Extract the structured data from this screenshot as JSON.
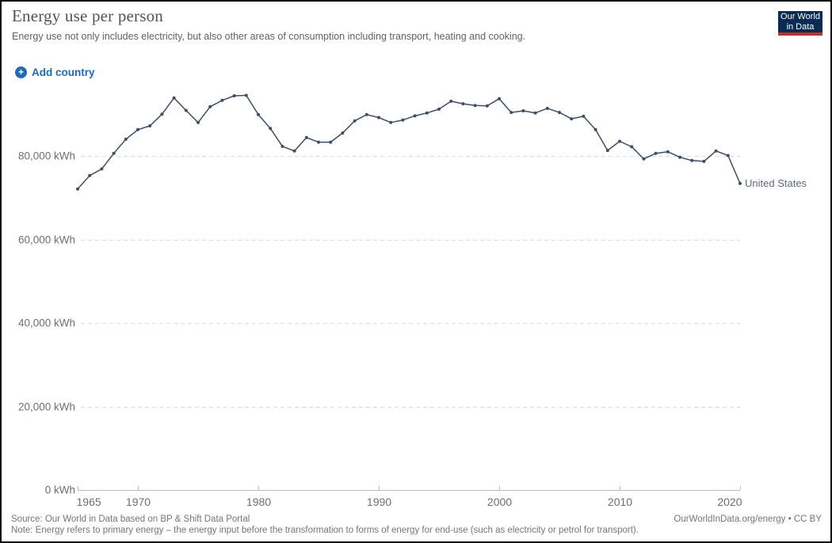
{
  "header": {
    "title": "Energy use per person",
    "subtitle": "Energy use not only includes electricity, but also other areas of consumption including transport, heating and cooking."
  },
  "controls": {
    "add_country_label": "Add country",
    "add_icon": "plus-circle-icon"
  },
  "logo": {
    "line1": "Our World",
    "line2": "in Data",
    "bg_color": "#0b2b52",
    "accent_color": "#b5362a"
  },
  "colors": {
    "accent_blue": "#1d6cb5",
    "grid": "#dcdcdc",
    "axis": "#bcbcbc"
  },
  "footer": {
    "source": "Source: Our World in Data based on BP & Shift Data Portal",
    "note": "Note: Energy refers to primary energy – the energy input before the transformation to forms of energy for end-use (such as electricity or petrol for transport).",
    "link": "OurWorldInData.org/energy • CC BY"
  },
  "chart_data": {
    "type": "line",
    "title": "Energy use per person",
    "unit": "kWh",
    "xlabel": "",
    "ylabel": "",
    "xlim": [
      1965,
      2020
    ],
    "ylim": [
      0,
      96000
    ],
    "grid": "dashed-horizontal",
    "legend_position": "end-of-line",
    "yticks": [
      0,
      20000,
      40000,
      60000,
      80000
    ],
    "ytick_labels": [
      "0 kWh",
      "20,000 kWh",
      "40,000 kWh",
      "60,000 kWh",
      "80,000 kWh"
    ],
    "xticks": [
      1965,
      1970,
      1980,
      1990,
      2000,
      2010,
      2020
    ],
    "x": [
      1965,
      1966,
      1967,
      1968,
      1969,
      1970,
      1971,
      1972,
      1973,
      1974,
      1975,
      1976,
      1977,
      1978,
      1979,
      1980,
      1981,
      1982,
      1983,
      1984,
      1985,
      1986,
      1987,
      1988,
      1989,
      1990,
      1991,
      1992,
      1993,
      1994,
      1995,
      1996,
      1997,
      1998,
      1999,
      2000,
      2001,
      2002,
      2003,
      2004,
      2005,
      2006,
      2007,
      2008,
      2009,
      2010,
      2011,
      2012,
      2013,
      2014,
      2015,
      2016,
      2017,
      2018,
      2019,
      2020
    ],
    "series": [
      {
        "name": "United States",
        "color": "#3e4e63",
        "label_color": "#5f6b78",
        "values": [
          72100,
          75300,
          76900,
          80600,
          84000,
          86300,
          87200,
          90000,
          93900,
          90900,
          88000,
          91800,
          93300,
          94400,
          94500,
          89900,
          86600,
          82300,
          81200,
          84400,
          83300,
          83300,
          85500,
          88400,
          89900,
          89200,
          88000,
          88600,
          89600,
          90300,
          91200,
          93100,
          92500,
          92100,
          92000,
          93700,
          90400,
          90800,
          90300,
          91400,
          90400,
          88900,
          89500,
          86300,
          81300,
          83500,
          82200,
          79300,
          80600,
          81000,
          79700,
          78900,
          78700,
          81200,
          80100,
          73400
        ]
      }
    ]
  }
}
